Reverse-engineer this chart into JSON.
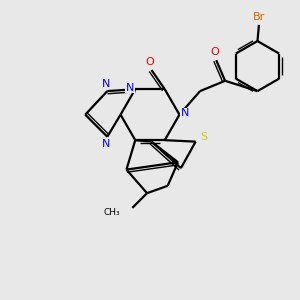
{
  "background_color": "#e8e8e8",
  "bond_color": "#000000",
  "N_color": "#0000ee",
  "O_color": "#ee0000",
  "S_color": "#cccc00",
  "Br_color": "#cc6600",
  "figsize": [
    3.0,
    3.0
  ],
  "dpi": 100,
  "xlim": [
    0,
    10
  ],
  "ylim": [
    0,
    10
  ]
}
